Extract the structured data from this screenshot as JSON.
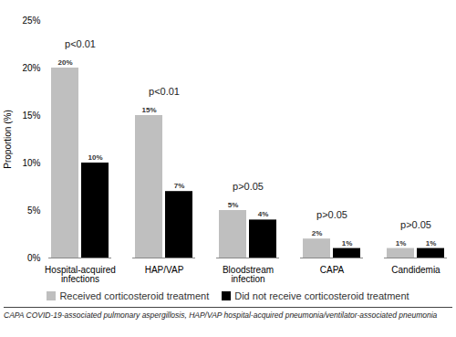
{
  "chart_data": {
    "type": "bar",
    "y_label": "Proportion (%)",
    "categories": [
      "Hospital-acquired infections",
      "HAP/VAP",
      "Bloodstream infection",
      "CAPA",
      "Candidemia"
    ],
    "series": [
      {
        "name": "Received corticosteroid treatment",
        "color": "#bfbfbf",
        "values": [
          20,
          15,
          5,
          2,
          1
        ],
        "value_labels": [
          "20%",
          "15%",
          "5%",
          "2%",
          "1%"
        ]
      },
      {
        "name": "Did not receive corticosteroid treatment",
        "color": "#000000",
        "values": [
          10,
          7,
          4,
          1,
          1
        ],
        "value_labels": [
          "10%",
          "7%",
          "4%",
          "1%",
          "1%"
        ]
      }
    ],
    "ylim": [
      0,
      25
    ],
    "yticks": [
      {
        "value": 0,
        "label": "0%"
      },
      {
        "value": 5,
        "label": "5%"
      },
      {
        "value": 10,
        "label": "10%"
      },
      {
        "value": 15,
        "label": "15%"
      },
      {
        "value": 20,
        "label": "20%"
      },
      {
        "value": 25,
        "label": "25%"
      }
    ],
    "annotations": [
      {
        "category": "Hospital-acquired infections",
        "text": "p<0.01"
      },
      {
        "category": "HAP/VAP",
        "text": "p<0.01"
      },
      {
        "category": "Bloodstream infection",
        "text": "p>0.05"
      },
      {
        "category": "CAPA",
        "text": "p>0.05"
      },
      {
        "category": "Candidemia",
        "text": "p>0.05"
      }
    ],
    "data_labels": true,
    "grid": false,
    "legend": "bottom",
    "caption": "CAPA COVID-19-associated pulmonary aspergillosis, HAP/VAP hospital-acquired pneumonia/ventilator-associated pneumonia"
  }
}
